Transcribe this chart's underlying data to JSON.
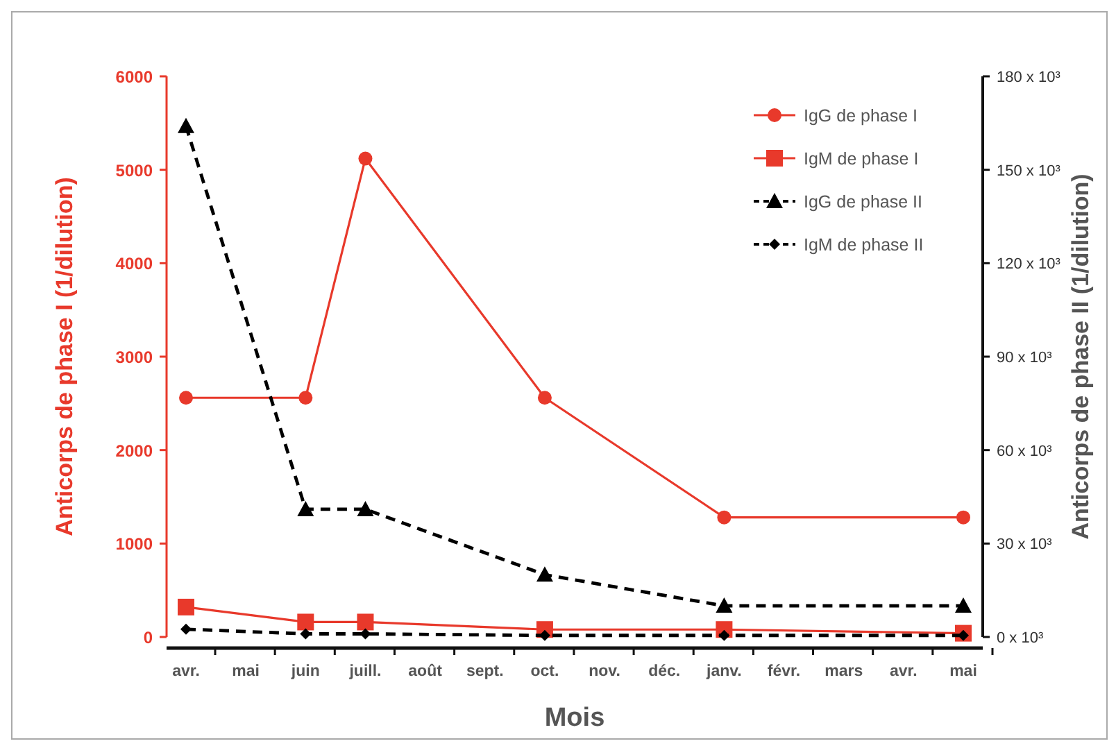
{
  "chart_data": {
    "type": "line",
    "xlabel": "Mois",
    "ylabel": "Anticorps de phase I (1/dilution)",
    "y2label": "Anticorps de phase II (1/dilution)",
    "categories": [
      "avr.",
      "mai",
      "juin",
      "juill.",
      "août",
      "sept.",
      "oct.",
      "nov.",
      "déc.",
      "janv.",
      "févr.",
      "mars",
      "avr.",
      "mai"
    ],
    "ylim": [
      0,
      6000
    ],
    "yticks": [
      0,
      1000,
      2000,
      3000,
      4000,
      5000,
      6000
    ],
    "y2lim": [
      0,
      180000
    ],
    "y2ticks": [
      {
        "value": 0,
        "label": "0 x 10³"
      },
      {
        "value": 30000,
        "label": "30 x 10³"
      },
      {
        "value": 60000,
        "label": "60 x 10³"
      },
      {
        "value": 90000,
        "label": "90 x 10³"
      },
      {
        "value": 120000,
        "label": "120 x 10³"
      },
      {
        "value": 150000,
        "label": "150 x 10³"
      },
      {
        "value": 180000,
        "label": "180 x 10³"
      }
    ],
    "legend": "top right",
    "series": [
      {
        "name": "IgG de phase I",
        "color": "#e8392b",
        "marker": "circle",
        "line_style": "solid",
        "values": [
          2560,
          null,
          2560,
          5120,
          null,
          null,
          2560,
          null,
          null,
          1280,
          null,
          null,
          null,
          1280
        ]
      },
      {
        "name": "IgM de phase I",
        "color": "#e8392b",
        "marker": "square",
        "line_style": "solid",
        "values": [
          320,
          null,
          160,
          160,
          null,
          null,
          80,
          null,
          null,
          80,
          null,
          null,
          null,
          40
        ]
      },
      {
        "name": "IgG de phase II",
        "color": "#000000",
        "marker": "triangle",
        "line_style": "dashed",
        "axis": "y2",
        "values": [
          164000,
          null,
          41000,
          41000,
          null,
          null,
          20000,
          null,
          null,
          10000,
          null,
          null,
          null,
          10000
        ]
      },
      {
        "name": "IgM de phase II",
        "color": "#000000",
        "marker": "diamond",
        "line_style": "dashed",
        "axis": "y2",
        "values": [
          2500,
          null,
          1000,
          1000,
          null,
          null,
          500,
          null,
          null,
          500,
          null,
          null,
          null,
          500
        ]
      }
    ]
  }
}
